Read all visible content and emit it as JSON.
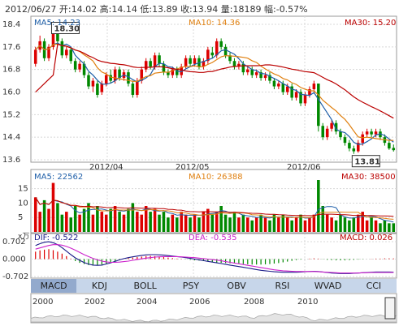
{
  "header": {
    "date": "2012/06/27",
    "open_label": "开:",
    "open": "14.02",
    "high_label": "高:",
    "high": "14.14",
    "low_label": "低:",
    "low": "13.89",
    "close_label": "收:",
    "close": "13.94",
    "vol_label": "量:",
    "vol": "18189",
    "chg_label": "幅:",
    "chg": "-0.57%"
  },
  "price_panel": {
    "ma5_label": "MA5: 14.23",
    "ma10_label": "MA10: 14.36",
    "ma30_label": "MA30: 15.20",
    "high_marker": "18.30",
    "low_marker": "13.81",
    "y_ticks": [
      "18.4",
      "17.6",
      "16.8",
      "16.0",
      "15.2",
      "14.4",
      "13.6"
    ],
    "x_ticks": [
      "2012/04",
      "2012/05",
      "2012/06"
    ]
  },
  "volume_panel": {
    "ma5_label": "MA5: 22562",
    "ma10_label": "MA10: 26388",
    "ma30_label": "MA30: 38500",
    "y_ticks": [
      "15",
      "10",
      "5"
    ],
    "unit": "x万"
  },
  "macd_panel": {
    "dif_label": "DIF: -0.522",
    "dea_label": "DEA: -0.535",
    "macd_label": "MACD: 0.026",
    "y_ticks": [
      "0.702",
      "0.000",
      "-0.702"
    ]
  },
  "tabs": [
    "MACD",
    "KDJ",
    "BOLL",
    "PSY",
    "OBV",
    "RSI",
    "WVAD",
    "CCI"
  ],
  "active_tab": "MACD",
  "timeline_years": [
    "2000",
    "2002",
    "2004",
    "2006",
    "2008",
    "2010"
  ],
  "colors": {
    "up": "#dd0000",
    "down": "#008800",
    "ma5": "#1f5fa8",
    "ma10": "#e08010",
    "ma30": "#bb0000",
    "dif": "#1a1a88",
    "dea": "#cc22cc",
    "tab_bg": "#c7d6ea",
    "tab_active": "#93aacd",
    "grid": "#d8d8d8"
  },
  "chart_data": {
    "type": "candlestick",
    "ylim": [
      13.6,
      18.4
    ],
    "annotations": {
      "high": 18.3,
      "low": 13.81
    },
    "candles": [
      [
        17.0,
        17.5,
        16.9,
        17.6
      ],
      [
        17.5,
        17.8,
        17.4,
        18.0
      ],
      [
        17.8,
        17.2,
        17.1,
        17.9
      ],
      [
        17.2,
        17.6,
        17.1,
        17.7
      ],
      [
        17.6,
        18.3,
        17.5,
        18.3
      ],
      [
        18.2,
        17.8,
        17.7,
        18.3
      ],
      [
        17.8,
        17.3,
        17.2,
        17.9
      ],
      [
        17.3,
        17.5,
        17.2,
        17.6
      ],
      [
        17.5,
        17.1,
        17.0,
        17.6
      ],
      [
        17.1,
        16.8,
        16.7,
        17.2
      ],
      [
        16.8,
        17.0,
        16.7,
        17.1
      ],
      [
        17.0,
        16.6,
        16.5,
        17.1
      ],
      [
        16.6,
        16.2,
        16.1,
        16.7
      ],
      [
        16.2,
        16.4,
        16.0,
        16.5
      ],
      [
        16.3,
        15.9,
        15.8,
        16.4
      ],
      [
        16.0,
        16.3,
        15.9,
        16.4
      ],
      [
        16.3,
        16.6,
        16.2,
        16.7
      ],
      [
        16.6,
        16.4,
        16.3,
        16.8
      ],
      [
        16.4,
        16.8,
        16.3,
        16.9
      ],
      [
        16.8,
        16.5,
        16.4,
        16.9
      ],
      [
        16.5,
        16.7,
        16.4,
        16.8
      ],
      [
        16.7,
        16.3,
        16.2,
        16.8
      ],
      [
        16.3,
        15.9,
        15.8,
        16.4
      ],
      [
        15.9,
        16.4,
        15.8,
        16.5
      ],
      [
        16.4,
        16.8,
        16.3,
        16.9
      ],
      [
        16.8,
        17.1,
        16.7,
        17.2
      ],
      [
        17.1,
        16.9,
        16.8,
        17.2
      ],
      [
        16.9,
        17.3,
        16.8,
        17.4
      ],
      [
        17.3,
        17.0,
        16.9,
        17.4
      ],
      [
        17.0,
        16.7,
        16.6,
        17.1
      ],
      [
        16.7,
        16.6,
        16.5,
        16.8
      ],
      [
        16.6,
        16.8,
        16.5,
        16.9
      ],
      [
        16.8,
        16.6,
        16.5,
        16.9
      ],
      [
        16.6,
        16.9,
        16.5,
        17.0
      ],
      [
        16.9,
        17.2,
        16.8,
        17.3
      ],
      [
        17.2,
        17.0,
        16.9,
        17.3
      ],
      [
        17.0,
        17.2,
        16.9,
        17.3
      ],
      [
        17.2,
        16.9,
        16.8,
        17.3
      ],
      [
        16.9,
        17.1,
        16.8,
        17.2
      ],
      [
        17.1,
        17.5,
        17.0,
        17.6
      ],
      [
        17.4,
        17.3,
        17.2,
        17.6
      ],
      [
        17.3,
        17.8,
        17.2,
        17.9
      ],
      [
        17.8,
        17.6,
        17.5,
        17.9
      ],
      [
        17.6,
        17.3,
        17.2,
        17.7
      ],
      [
        17.3,
        17.1,
        17.0,
        17.4
      ],
      [
        17.1,
        16.9,
        16.8,
        17.2
      ],
      [
        16.9,
        17.0,
        16.8,
        17.1
      ],
      [
        17.0,
        16.7,
        16.6,
        17.1
      ],
      [
        16.7,
        16.8,
        16.6,
        16.9
      ],
      [
        16.8,
        16.6,
        16.5,
        16.9
      ],
      [
        16.6,
        16.7,
        16.5,
        16.8
      ],
      [
        16.7,
        16.5,
        16.4,
        16.8
      ],
      [
        16.5,
        16.6,
        16.4,
        16.7
      ],
      [
        16.6,
        16.4,
        16.3,
        16.7
      ],
      [
        16.4,
        16.2,
        16.1,
        16.5
      ],
      [
        16.2,
        16.3,
        16.1,
        16.4
      ],
      [
        16.3,
        16.0,
        15.9,
        16.4
      ],
      [
        16.0,
        16.2,
        15.9,
        16.3
      ],
      [
        16.2,
        15.8,
        15.7,
        16.3
      ],
      [
        15.8,
        16.0,
        15.7,
        16.1
      ],
      [
        16.0,
        15.6,
        15.5,
        16.1
      ],
      [
        15.6,
        15.9,
        15.5,
        16.0
      ],
      [
        15.9,
        16.1,
        15.8,
        16.2
      ],
      [
        16.1,
        16.3,
        16.0,
        16.4
      ],
      [
        16.3,
        14.8,
        14.6,
        16.3
      ],
      [
        14.8,
        14.4,
        14.3,
        14.9
      ],
      [
        14.4,
        14.7,
        14.3,
        14.8
      ],
      [
        14.7,
        14.9,
        14.6,
        15.0
      ],
      [
        14.9,
        14.6,
        14.5,
        15.0
      ],
      [
        14.6,
        14.4,
        14.3,
        14.7
      ],
      [
        14.4,
        14.2,
        14.1,
        14.5
      ],
      [
        14.2,
        14.0,
        13.9,
        14.3
      ],
      [
        14.0,
        13.9,
        13.81,
        14.1
      ],
      [
        13.9,
        14.2,
        13.85,
        14.3
      ],
      [
        14.2,
        14.5,
        14.1,
        14.6
      ],
      [
        14.5,
        14.6,
        14.4,
        14.7
      ],
      [
        14.6,
        14.5,
        14.4,
        14.7
      ],
      [
        14.5,
        14.6,
        14.4,
        14.7
      ],
      [
        14.6,
        14.4,
        14.3,
        14.7
      ],
      [
        14.4,
        14.2,
        14.1,
        14.5
      ],
      [
        14.2,
        14.0,
        13.95,
        14.3
      ],
      [
        14.02,
        13.94,
        13.89,
        14.14
      ]
    ],
    "volume": [
      12,
      7,
      11,
      8,
      17,
      10,
      6,
      7,
      5,
      9,
      6,
      8,
      10,
      6,
      9,
      7,
      6,
      8,
      9,
      7,
      6,
      8,
      10,
      7,
      6,
      9,
      7,
      8,
      6,
      7,
      5,
      6,
      5,
      7,
      6,
      5,
      6,
      5,
      7,
      8,
      6,
      7,
      9,
      6,
      5,
      7,
      5,
      6,
      5,
      4,
      5,
      6,
      5,
      4,
      6,
      5,
      6,
      5,
      4,
      5,
      6,
      4,
      5,
      6,
      18,
      9,
      6,
      5,
      4,
      6,
      5,
      4,
      5,
      6,
      7,
      4,
      5,
      4,
      3,
      4,
      3,
      3
    ],
    "macd": [
      0.3,
      0.35,
      0.38,
      0.4,
      0.36,
      0.3,
      0.22,
      0.12,
      0.02,
      -0.08,
      -0.15,
      -0.2,
      -0.24,
      -0.26,
      -0.25,
      -0.22,
      -0.18,
      -0.13,
      -0.08,
      -0.04,
      0.0,
      0.04,
      0.06,
      0.08,
      0.1,
      0.12,
      0.13,
      0.12,
      0.1,
      0.08,
      0.06,
      0.04,
      0.02,
      0.01,
      -0.01,
      -0.03,
      -0.05,
      -0.06,
      -0.08,
      -0.1,
      -0.12,
      -0.14,
      -0.15,
      -0.16,
      -0.17,
      -0.18,
      -0.19,
      -0.2,
      -0.21,
      -0.22,
      -0.22,
      -0.22,
      -0.21,
      -0.2,
      -0.18,
      -0.16,
      -0.13,
      -0.1,
      -0.07,
      -0.04,
      -0.02,
      0.0,
      0.02,
      0.03,
      0.02,
      -0.01,
      -0.03,
      -0.04,
      -0.05,
      -0.05,
      -0.05,
      -0.04,
      -0.03,
      -0.02,
      -0.01,
      0.0,
      0.01,
      0.02,
      0.02,
      0.03,
      0.03,
      0.026
    ],
    "dif": [
      0.55,
      0.62,
      0.68,
      0.7,
      0.66,
      0.58,
      0.46,
      0.32,
      0.18,
      0.05,
      -0.05,
      -0.14,
      -0.2,
      -0.24,
      -0.25,
      -0.24,
      -0.2,
      -0.15,
      -0.09,
      -0.03,
      0.02,
      0.06,
      0.09,
      0.12,
      0.15,
      0.17,
      0.18,
      0.18,
      0.17,
      0.16,
      0.14,
      0.12,
      0.1,
      0.08,
      0.06,
      0.03,
      0.0,
      -0.03,
      -0.06,
      -0.09,
      -0.12,
      -0.15,
      -0.18,
      -0.21,
      -0.24,
      -0.27,
      -0.3,
      -0.33,
      -0.36,
      -0.39,
      -0.42,
      -0.45,
      -0.47,
      -0.49,
      -0.51,
      -0.52,
      -0.53,
      -0.53,
      -0.53,
      -0.53,
      -0.52,
      -0.51,
      -0.5,
      -0.49,
      -0.5,
      -0.52,
      -0.54,
      -0.56,
      -0.57,
      -0.58,
      -0.58,
      -0.58,
      -0.57,
      -0.56,
      -0.55,
      -0.54,
      -0.53,
      -0.52,
      -0.52,
      -0.52,
      -0.52,
      -0.522
    ],
    "dea": [
      0.4,
      0.45,
      0.5,
      0.55,
      0.58,
      0.58,
      0.56,
      0.51,
      0.44,
      0.36,
      0.27,
      0.18,
      0.1,
      0.03,
      -0.03,
      -0.08,
      -0.11,
      -0.13,
      -0.13,
      -0.12,
      -0.1,
      -0.08,
      -0.05,
      -0.02,
      0.01,
      0.04,
      0.06,
      0.08,
      0.09,
      0.1,
      0.1,
      0.1,
      0.1,
      0.09,
      0.08,
      0.07,
      0.06,
      0.04,
      0.02,
      0.0,
      -0.02,
      -0.04,
      -0.07,
      -0.1,
      -0.13,
      -0.16,
      -0.19,
      -0.22,
      -0.25,
      -0.28,
      -0.31,
      -0.34,
      -0.37,
      -0.4,
      -0.43,
      -0.45,
      -0.47,
      -0.48,
      -0.49,
      -0.5,
      -0.5,
      -0.5,
      -0.5,
      -0.5,
      -0.51,
      -0.52,
      -0.53,
      -0.54,
      -0.55,
      -0.56,
      -0.56,
      -0.56,
      -0.56,
      -0.56,
      -0.55,
      -0.55,
      -0.54,
      -0.54,
      -0.54,
      -0.54,
      -0.54,
      -0.535
    ]
  }
}
